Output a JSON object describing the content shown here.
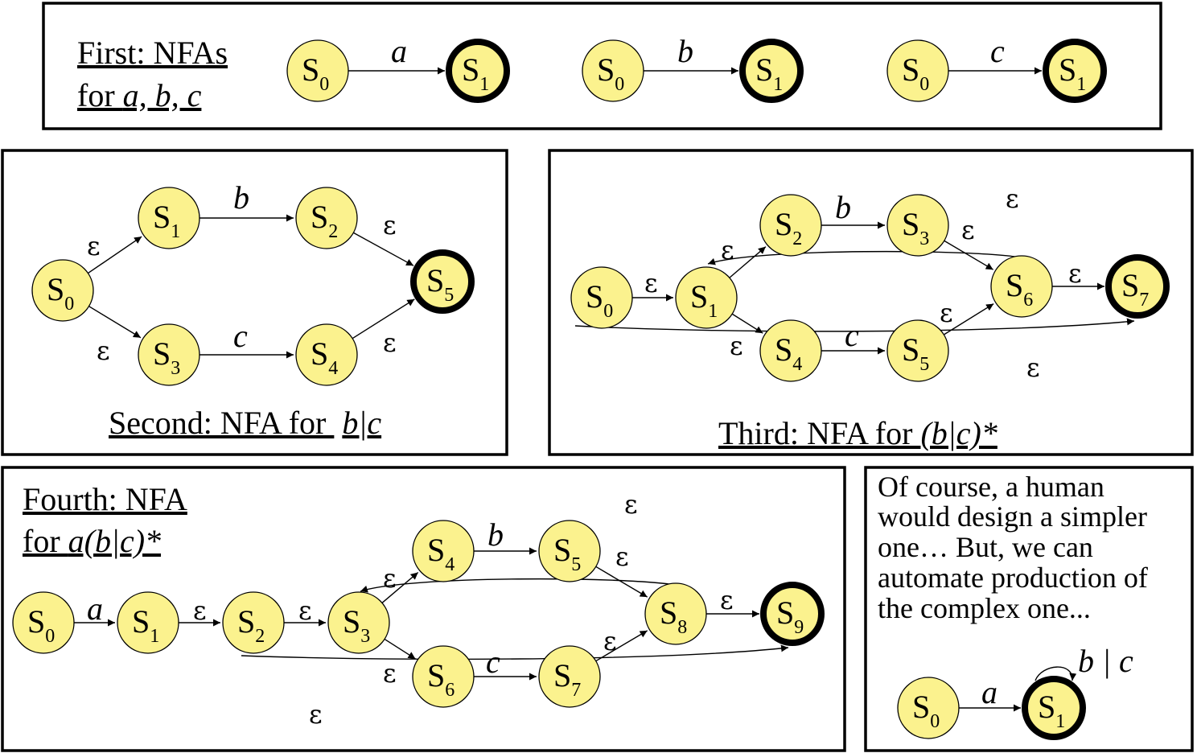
{
  "captions": {
    "first": {
      "line1": "First: NFAs",
      "line2_prefix": "for ",
      "line2_syms": "a, b, c"
    },
    "second": {
      "prefix": "Second: NFA for ",
      "expr": "b|c"
    },
    "third": {
      "prefix": "Third: NFA for ",
      "expr": "(b|c)*"
    },
    "fourth": {
      "line1": "Fourth: NFA",
      "line2_prefix": "for ",
      "line2_expr": "a(b|c)*"
    },
    "note": [
      "Of course, a human",
      "would design a simpler",
      "one… But, we can",
      "automate production of",
      "the complex one..."
    ]
  },
  "state_letter": "S",
  "epsilon": "ε",
  "colors": {
    "state_fill": "#fbf28e",
    "stroke": "#000000"
  },
  "diagrams": {
    "first_a": {
      "states": [
        "0",
        "1"
      ],
      "final": [
        "1"
      ],
      "edge_label": "a"
    },
    "first_b": {
      "states": [
        "0",
        "1"
      ],
      "final": [
        "1"
      ],
      "edge_label": "b"
    },
    "first_c": {
      "states": [
        "0",
        "1"
      ],
      "final": [
        "1"
      ],
      "edge_label": "c"
    },
    "second": {
      "states": [
        "0",
        "1",
        "2",
        "3",
        "4",
        "5"
      ],
      "final": [
        "5"
      ],
      "edge_labels": [
        "b",
        "c"
      ]
    },
    "third": {
      "states": [
        "0",
        "1",
        "2",
        "3",
        "4",
        "5",
        "6",
        "7"
      ],
      "final": [
        "7"
      ],
      "edge_labels": [
        "b",
        "c"
      ]
    },
    "fourth": {
      "states": [
        "0",
        "1",
        "2",
        "3",
        "4",
        "5",
        "6",
        "7",
        "8",
        "9"
      ],
      "final": [
        "9"
      ],
      "edge_labels": [
        "a",
        "b",
        "c"
      ]
    },
    "simple": {
      "states": [
        "0",
        "1"
      ],
      "final": [
        "1"
      ],
      "edge_label": "a",
      "loop_label": "b | c"
    }
  }
}
